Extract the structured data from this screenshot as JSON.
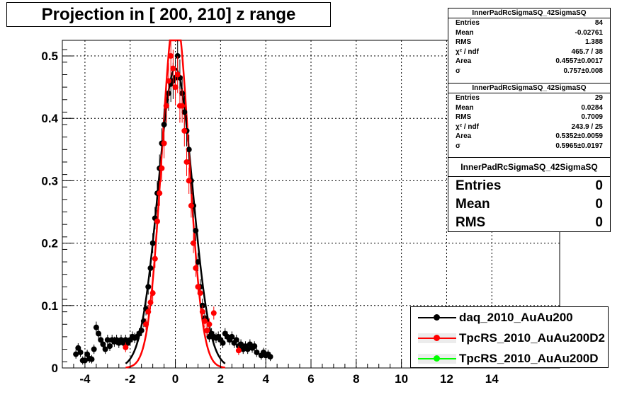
{
  "title": "Projection in [ 200, 210] z range",
  "stats_boxes": [
    {
      "name": "InnerPadRcSigmaSQ_42SigmaSQ",
      "rows": [
        {
          "label": "Entries",
          "value": "84"
        },
        {
          "label": "Mean",
          "value": "-0.02761"
        },
        {
          "label": "RMS",
          "value": "1.388"
        },
        {
          "label": "χ² / ndf",
          "value": "465.7 / 38"
        },
        {
          "label": "Area",
          "value": "0.4557±0.0017"
        },
        {
          "label": "σ",
          "value": "0.757±0.008"
        }
      ]
    },
    {
      "name": "InnerPadRcSigmaSQ_42SigmaSQ",
      "rows": [
        {
          "label": "Entries",
          "value": "29"
        },
        {
          "label": "Mean",
          "value": "0.0284"
        },
        {
          "label": "RMS",
          "value": "0.7009"
        },
        {
          "label": "χ² / ndf",
          "value": "243.9 / 25"
        },
        {
          "label": "Area",
          "value": "0.5352±0.0059"
        },
        {
          "label": "σ",
          "value": "0.5965±0.0197"
        }
      ]
    },
    {
      "name": "InnerPadRcSigmaSQ_42SigmaSQ",
      "rows": [
        {
          "label": "Entries",
          "value": "0"
        },
        {
          "label": "Mean",
          "value": "0"
        },
        {
          "label": "RMS",
          "value": "0"
        }
      ]
    }
  ],
  "legend": [
    {
      "label": "daq_2010_AuAu200",
      "color": "#000000",
      "fill": "#ffffff"
    },
    {
      "label": "TpcRS_2010_AuAu200D2",
      "color": "#ff0000",
      "fill": "#ececec"
    },
    {
      "label": "TpcRS_2010_AuAu200D",
      "color": "#00ff00",
      "fill": "#ececec"
    }
  ],
  "chart_data": {
    "type": "scatter",
    "title": "Projection in [ 200, 210] z range",
    "xlim": [
      -5,
      17
    ],
    "ylim": [
      0,
      0.525
    ],
    "xticks": [
      -4,
      -2,
      0,
      2,
      4,
      6,
      8,
      10,
      12,
      14
    ],
    "yticks": [
      0,
      0.1,
      0.2,
      0.3,
      0.4,
      0.5
    ],
    "grid": true,
    "legend_position": "bottom-right",
    "series": [
      {
        "name": "daq_2010_AuAu200",
        "color": "#000000",
        "points": [
          [
            -4.4,
            0.022
          ],
          [
            -4.3,
            0.032
          ],
          [
            -4.2,
            0.025
          ],
          [
            -4.1,
            0.012
          ],
          [
            -4.0,
            0.012
          ],
          [
            -3.9,
            0.022
          ],
          [
            -3.8,
            0.015
          ],
          [
            -3.7,
            0.014
          ],
          [
            -3.6,
            0.03
          ],
          [
            -3.5,
            0.065
          ],
          [
            -3.4,
            0.055
          ],
          [
            -3.3,
            0.045
          ],
          [
            -3.2,
            0.038
          ],
          [
            -3.1,
            0.03
          ],
          [
            -3.0,
            0.045
          ],
          [
            -2.9,
            0.035
          ],
          [
            -2.8,
            0.045
          ],
          [
            -2.7,
            0.042
          ],
          [
            -2.6,
            0.045
          ],
          [
            -2.5,
            0.04
          ],
          [
            -2.4,
            0.045
          ],
          [
            -2.3,
            0.04
          ],
          [
            -2.2,
            0.045
          ],
          [
            -2.1,
            0.04
          ],
          [
            -2.0,
            0.045
          ],
          [
            -1.9,
            0.05
          ],
          [
            -1.8,
            0.048
          ],
          [
            -1.7,
            0.05
          ],
          [
            -1.6,
            0.055
          ],
          [
            -1.5,
            0.06
          ],
          [
            -1.4,
            0.075
          ],
          [
            -1.3,
            0.095
          ],
          [
            -1.2,
            0.13
          ],
          [
            -1.1,
            0.16
          ],
          [
            -1.0,
            0.2
          ],
          [
            -0.9,
            0.24
          ],
          [
            -0.8,
            0.28
          ],
          [
            -0.7,
            0.32
          ],
          [
            -0.6,
            0.36
          ],
          [
            -0.5,
            0.39
          ],
          [
            -0.4,
            0.42
          ],
          [
            -0.3,
            0.44
          ],
          [
            -0.2,
            0.455
          ],
          [
            -0.1,
            0.46
          ],
          [
            0.0,
            0.465
          ],
          [
            0.1,
            0.5
          ],
          [
            0.2,
            0.465
          ],
          [
            0.3,
            0.44
          ],
          [
            0.4,
            0.41
          ],
          [
            0.5,
            0.38
          ],
          [
            0.6,
            0.35
          ],
          [
            0.7,
            0.3
          ],
          [
            0.8,
            0.26
          ],
          [
            0.9,
            0.22
          ],
          [
            1.0,
            0.17
          ],
          [
            1.1,
            0.13
          ],
          [
            1.2,
            0.1
          ],
          [
            1.3,
            0.08
          ],
          [
            1.4,
            0.06
          ],
          [
            1.5,
            0.05
          ],
          [
            1.6,
            0.055
          ],
          [
            1.7,
            0.05
          ],
          [
            1.8,
            0.048
          ],
          [
            1.9,
            0.05
          ],
          [
            2.0,
            0.045
          ],
          [
            2.1,
            0.04
          ],
          [
            2.2,
            0.055
          ],
          [
            2.3,
            0.05
          ],
          [
            2.4,
            0.045
          ],
          [
            2.5,
            0.05
          ],
          [
            2.6,
            0.04
          ],
          [
            2.7,
            0.045
          ],
          [
            2.8,
            0.035
          ],
          [
            2.9,
            0.038
          ],
          [
            3.0,
            0.03
          ],
          [
            3.1,
            0.035
          ],
          [
            3.2,
            0.03
          ],
          [
            3.3,
            0.038
          ],
          [
            3.4,
            0.032
          ],
          [
            3.5,
            0.035
          ],
          [
            3.6,
            0.025
          ],
          [
            3.8,
            0.02
          ],
          [
            3.9,
            0.025
          ],
          [
            4.0,
            0.02
          ],
          [
            4.1,
            0.022
          ],
          [
            4.2,
            0.018
          ]
        ]
      },
      {
        "name": "TpcRS_2010_AuAu200D2",
        "color": "#ff0000",
        "points": [
          [
            -2.2,
            0.033
          ],
          [
            -1.3,
            0.07
          ],
          [
            -1.2,
            0.09
          ],
          [
            -1.1,
            0.105
          ],
          [
            -1.0,
            0.12
          ],
          [
            -0.9,
            0.175
          ],
          [
            -0.8,
            0.235
          ],
          [
            -0.7,
            0.28
          ],
          [
            -0.6,
            0.32
          ],
          [
            -0.5,
            0.36
          ],
          [
            -0.4,
            0.42
          ],
          [
            -0.3,
            0.46
          ],
          [
            -0.2,
            0.5
          ],
          [
            -0.1,
            0.48
          ],
          [
            0.0,
            0.45
          ],
          [
            0.1,
            0.47
          ],
          [
            0.2,
            0.42
          ],
          [
            0.3,
            0.42
          ],
          [
            0.4,
            0.38
          ],
          [
            0.5,
            0.33
          ],
          [
            0.6,
            0.3
          ],
          [
            0.7,
            0.26
          ],
          [
            0.8,
            0.2
          ],
          [
            0.9,
            0.16
          ],
          [
            1.0,
            0.13
          ],
          [
            1.1,
            0.12
          ],
          [
            1.2,
            0.09
          ],
          [
            1.3,
            0.075
          ],
          [
            1.4,
            0.06
          ],
          [
            1.5,
            0.07
          ],
          [
            1.7,
            0.088
          ],
          [
            2.8,
            0.028
          ]
        ]
      },
      {
        "name": "TpcRS_2010_AuAu200D",
        "color": "#00ff00",
        "points": []
      }
    ],
    "fits": [
      {
        "series": "daq_2010_AuAu200",
        "color": "#000000",
        "amplitude": 0.48,
        "sigma": 0.757
      },
      {
        "series": "TpcRS_2010_AuAu200D2",
        "color": "#ff0000",
        "amplitude": 0.57,
        "sigma": 0.5965
      }
    ]
  }
}
